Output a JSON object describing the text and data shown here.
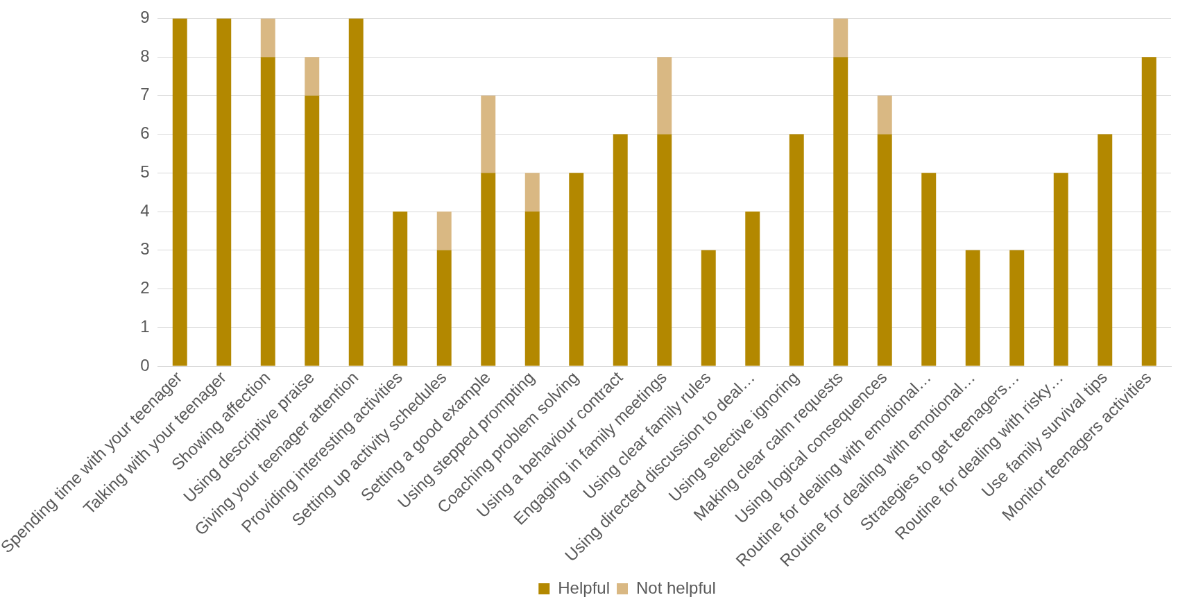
{
  "chart_data": {
    "type": "bar",
    "stacked": true,
    "categories": [
      "Spending time with your teenager",
      "Talking with your teenager",
      "Showing affection",
      "Using descriptive praise",
      "Giving your teenager attention",
      "Providing interesting activities",
      "Setting up activity schedules",
      "Setting a good example",
      "Using stepped prompting",
      "Coaching problem solving",
      "Using a behaviour contract",
      "Engaging in family meetings",
      "Using clear family rules",
      "Using directed discussion to deal…",
      "Using selective ignoring",
      "Making clear calm requests",
      "Using logical consequences",
      "Routine for dealing with emotional…",
      "Routine for dealing with emotional…",
      "Strategies to get teenagers…",
      "Routine for dealing with risky…",
      "Use family survival tips",
      "Monitor teenagers activities"
    ],
    "series": [
      {
        "name": "Helpful",
        "color": "#b38800",
        "values": [
          9,
          9,
          8,
          7,
          9,
          4,
          3,
          5,
          4,
          5,
          6,
          6,
          3,
          4,
          6,
          8,
          6,
          5,
          3,
          3,
          5,
          6,
          8
        ]
      },
      {
        "name": "Not helpful",
        "color": "#d9b883",
        "values": [
          0,
          0,
          1,
          1,
          0,
          0,
          1,
          2,
          1,
          0,
          0,
          2,
          0,
          0,
          0,
          1,
          1,
          0,
          0,
          0,
          0,
          0,
          0
        ]
      }
    ],
    "ylim": [
      0,
      9
    ],
    "yticks": [
      0,
      1,
      2,
      3,
      4,
      5,
      6,
      7,
      8,
      9
    ],
    "grid": "y",
    "legend": "bottom"
  }
}
